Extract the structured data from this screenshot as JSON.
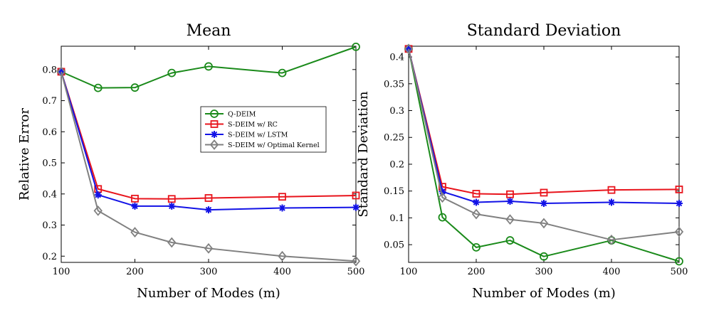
{
  "chart_data": [
    {
      "type": "line",
      "title": "Mean",
      "xlabel": "Number of Modes (m)",
      "ylabel": "Relative Error",
      "xlim": [
        100,
        500
      ],
      "ylim": [
        0.18,
        0.875
      ],
      "xticks": [
        100,
        200,
        300,
        400,
        500
      ],
      "xtick_labels": [
        "100",
        "200",
        "300",
        "400",
        "500"
      ],
      "yticks": [
        0.2,
        0.3,
        0.4,
        0.5,
        0.6,
        0.7,
        0.8
      ],
      "ytick_labels": [
        "0.2",
        "0.3",
        "0.4",
        "0.5",
        "0.6",
        "0.7",
        "0.8"
      ],
      "legend": "center-right",
      "series": [
        {
          "name": "Q-DEIM",
          "color": "#1a8a1a",
          "marker": "circle",
          "x": [
            100,
            150,
            200,
            250,
            300,
            400,
            500
          ],
          "values": [
            0.793,
            0.741,
            0.742,
            0.789,
            0.81,
            0.789,
            0.873
          ]
        },
        {
          "name": "S-DEIM w/ RC",
          "color": "#e8141c",
          "marker": "square",
          "x": [
            100,
            150,
            200,
            250,
            300,
            400,
            500
          ],
          "values": [
            0.793,
            0.416,
            0.385,
            0.384,
            0.387,
            0.391,
            0.395
          ]
        },
        {
          "name": "S-DEIM w/ LSTM",
          "color": "#1212e6",
          "marker": "star",
          "x": [
            100,
            150,
            200,
            250,
            300,
            400,
            500
          ],
          "values": [
            0.793,
            0.397,
            0.361,
            0.361,
            0.349,
            0.355,
            0.357
          ]
        },
        {
          "name": "S-DEIM w/ Optimal Kernel",
          "color": "#808080",
          "marker": "diamond",
          "x": [
            100,
            150,
            200,
            250,
            300,
            400,
            500
          ],
          "values": [
            0.793,
            0.346,
            0.277,
            0.244,
            0.225,
            0.2,
            0.184
          ]
        }
      ]
    },
    {
      "type": "line",
      "title": "Standard Deviation",
      "xlabel": "Number of Modes (m)",
      "ylabel": "Standard Deviation",
      "xlim": [
        100,
        500
      ],
      "ylim": [
        0.017,
        0.42
      ],
      "xticks": [
        100,
        200,
        300,
        400,
        500
      ],
      "xtick_labels": [
        "100",
        "200",
        "300",
        "400",
        "500"
      ],
      "yticks": [
        0.05,
        0.1,
        0.15,
        0.2,
        0.25,
        0.3,
        0.35,
        0.4
      ],
      "ytick_labels": [
        "0.05",
        "0.1",
        "0.15",
        "0.2",
        "0.25",
        "0.3",
        "0.35",
        "0.4"
      ],
      "series": [
        {
          "name": "Q-DEIM",
          "color": "#1a8a1a",
          "marker": "circle",
          "x": [
            100,
            150,
            200,
            250,
            300,
            400,
            500
          ],
          "values": [
            0.415,
            0.101,
            0.045,
            0.058,
            0.028,
            0.058,
            0.019
          ]
        },
        {
          "name": "S-DEIM w/ RC",
          "color": "#e8141c",
          "marker": "square",
          "x": [
            100,
            150,
            200,
            250,
            300,
            400,
            500
          ],
          "values": [
            0.415,
            0.158,
            0.145,
            0.144,
            0.147,
            0.152,
            0.153
          ]
        },
        {
          "name": "S-DEIM w/ LSTM",
          "color": "#1212e6",
          "marker": "star",
          "x": [
            100,
            150,
            200,
            250,
            300,
            400,
            500
          ],
          "values": [
            0.415,
            0.149,
            0.129,
            0.131,
            0.127,
            0.129,
            0.127
          ]
        },
        {
          "name": "S-DEIM w/ Optimal Kernel",
          "color": "#808080",
          "marker": "diamond",
          "x": [
            100,
            150,
            200,
            250,
            300,
            400,
            500
          ],
          "values": [
            0.415,
            0.138,
            0.107,
            0.097,
            0.09,
            0.059,
            0.074
          ]
        }
      ]
    }
  ]
}
